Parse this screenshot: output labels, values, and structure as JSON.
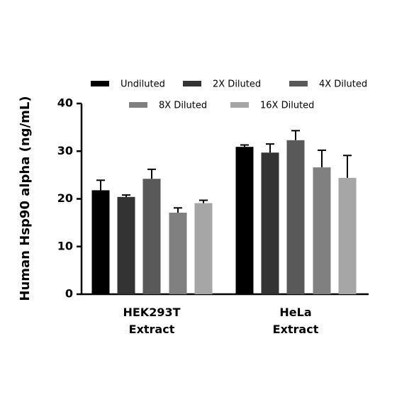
{
  "chart_data": {
    "type": "bar",
    "y_label": "Human Hsp90 alpha (ng/mL)",
    "categories": [
      "HEK293T Extract",
      "HeLa Extract"
    ],
    "series": [
      {
        "name": "Undiluted",
        "color": "#000000",
        "values": [
          21.8,
          30.9
        ],
        "errors": [
          2.1,
          0.4
        ]
      },
      {
        "name": "2X Diluted",
        "color": "#333333",
        "values": [
          20.4,
          29.7
        ],
        "errors": [
          0.4,
          1.8
        ]
      },
      {
        "name": "4X Diluted",
        "color": "#595959",
        "values": [
          24.2,
          32.3
        ],
        "errors": [
          2.0,
          2.0
        ]
      },
      {
        "name": "8X Diluted",
        "color": "#808080",
        "values": [
          17.1,
          26.6
        ],
        "errors": [
          1.0,
          3.6
        ]
      },
      {
        "name": "16X Diluted",
        "color": "#a6a6a6",
        "values": [
          19.1,
          24.4
        ],
        "errors": [
          0.6,
          4.7
        ]
      }
    ],
    "ylim": [
      0,
      40
    ],
    "yticks": [
      0,
      10,
      20,
      30,
      40
    ],
    "grid": false
  }
}
